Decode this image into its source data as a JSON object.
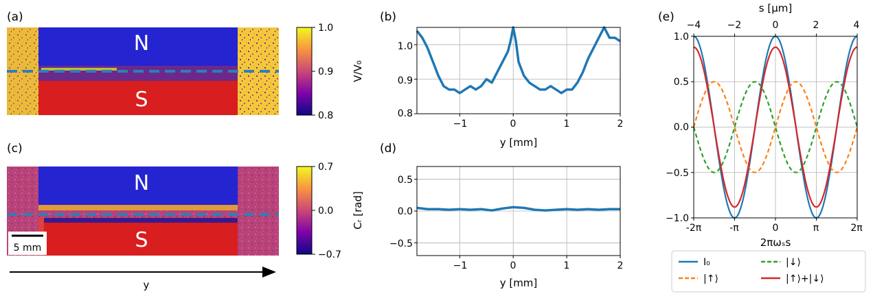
{
  "panel_labels": {
    "a": "(a)",
    "b": "(b)",
    "c": "(c)",
    "d": "(d)",
    "e": "(e)"
  },
  "maps": {
    "pole_north": "N",
    "pole_south": "S",
    "scalebar_label": "5 mm",
    "arrow_label": "y",
    "colors": {
      "bg_a": "#f2c83a",
      "north": "#2424d0",
      "south": "#d81e1e",
      "bg_c": "#b8427a",
      "dashed_line": "#2f7fb8"
    },
    "colorbar_a": {
      "label": "V/V₀",
      "ticks": [
        "1.0",
        "0.9",
        "0.8"
      ],
      "range": [
        0.8,
        1.0
      ]
    },
    "colorbar_c": {
      "label": "Cᵣ [rad]",
      "ticks": [
        "0.7",
        "0.0",
        "−0.7"
      ],
      "range": [
        -0.7,
        0.7
      ]
    }
  },
  "chart_data": [
    {
      "panel": "(b)",
      "type": "line",
      "xlabel": "y [mm]",
      "ylabel": "",
      "xlim": [
        -1.8,
        2.0
      ],
      "ylim": [
        0.8,
        1.05
      ],
      "xticks": [
        -1,
        0,
        1,
        2
      ],
      "yticks": [
        0.8,
        0.9,
        1.0
      ],
      "grid": true,
      "x": [
        -1.8,
        -1.7,
        -1.6,
        -1.5,
        -1.4,
        -1.3,
        -1.2,
        -1.1,
        -1.0,
        -0.9,
        -0.8,
        -0.7,
        -0.6,
        -0.5,
        -0.4,
        -0.3,
        -0.2,
        -0.1,
        -0.05,
        0.0,
        0.05,
        0.1,
        0.2,
        0.3,
        0.4,
        0.5,
        0.6,
        0.7,
        0.8,
        0.9,
        1.0,
        1.1,
        1.2,
        1.3,
        1.4,
        1.5,
        1.6,
        1.7,
        1.8,
        1.9,
        2.0
      ],
      "y": [
        1.04,
        1.02,
        0.99,
        0.95,
        0.91,
        0.88,
        0.87,
        0.87,
        0.86,
        0.87,
        0.88,
        0.87,
        0.88,
        0.9,
        0.89,
        0.92,
        0.95,
        0.98,
        1.01,
        1.06,
        1.01,
        0.95,
        0.91,
        0.89,
        0.88,
        0.87,
        0.87,
        0.88,
        0.87,
        0.86,
        0.87,
        0.87,
        0.89,
        0.92,
        0.96,
        0.99,
        1.02,
        1.05,
        1.02,
        1.02,
        1.01
      ]
    },
    {
      "panel": "(d)",
      "type": "line",
      "xlabel": "y [mm]",
      "ylabel": "",
      "xlim": [
        -1.8,
        2.0
      ],
      "ylim": [
        -0.7,
        0.7
      ],
      "xticks": [
        -1,
        0,
        1,
        2
      ],
      "yticks": [
        -0.5,
        0.0,
        0.5
      ],
      "grid": true,
      "x": [
        -1.8,
        -1.6,
        -1.4,
        -1.2,
        -1.0,
        -0.8,
        -0.6,
        -0.4,
        -0.2,
        0.0,
        0.2,
        0.4,
        0.6,
        0.8,
        1.0,
        1.2,
        1.4,
        1.6,
        1.8,
        2.0
      ],
      "y": [
        0.05,
        0.03,
        0.03,
        0.02,
        0.03,
        0.02,
        0.03,
        0.01,
        0.04,
        0.06,
        0.05,
        0.02,
        0.01,
        0.02,
        0.03,
        0.02,
        0.03,
        0.02,
        0.03,
        0.03
      ]
    },
    {
      "panel": "(e)",
      "type": "line",
      "xlabel": "2πωₛs",
      "top_xlabel": "s [μm]",
      "ylabel": "",
      "xlim": [
        -6.2832,
        6.2832
      ],
      "ylim": [
        -1.0,
        1.0
      ],
      "xtick_labels": [
        "-2π",
        "-π",
        "0",
        "π",
        "2π"
      ],
      "top_xtick_labels": [
        "−4",
        "−2",
        "0",
        "2",
        "4"
      ],
      "yticks": [
        -1.0,
        -0.5,
        0.0,
        0.5,
        1.0
      ],
      "grid": true,
      "legend_position": "bottom",
      "series": [
        {
          "name": "I₀",
          "color": "#1f77b4",
          "style": "solid",
          "function": "cos(x)"
        },
        {
          "name": "|↑⟩",
          "color": "#ff7f0e",
          "style": "dashed",
          "function": "0.5cos(x−π/2)"
        },
        {
          "name": "|↓⟩",
          "color": "#2ca02c",
          "style": "dashed",
          "function": "0.5cos(x+π/2)"
        },
        {
          "name": "|↑⟩+|↓⟩",
          "color": "#d62728",
          "style": "solid",
          "function": "0.88cos(x)"
        }
      ]
    }
  ],
  "tick_text": {
    "b_y": [
      "0.8",
      "0.9",
      "1.0"
    ],
    "b_x": [
      "−1",
      "0",
      "1",
      "2"
    ],
    "d_y": [
      "−0.5",
      "0.0",
      "0.5"
    ],
    "d_x": [
      "−1",
      "0",
      "1",
      "2"
    ],
    "e_y": [
      "−1.0",
      "−0.5",
      "0.0",
      "0.5",
      "1.0"
    ]
  }
}
